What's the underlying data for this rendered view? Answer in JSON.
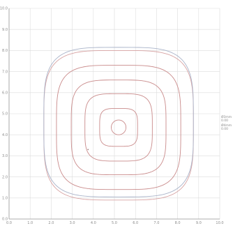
{
  "chart_data": {
    "type": "line",
    "title": "",
    "xlabel": "",
    "ylabel": "",
    "xlim": [
      0,
      10
    ],
    "ylim": [
      0,
      10
    ],
    "grid": true,
    "legend_placement": "right",
    "x_ticks": [
      "0.0",
      "1.0",
      "2.0",
      "3.0",
      "4.0",
      "5.0",
      "6.0",
      "7.0",
      "8.0",
      "9.0",
      "10.0"
    ],
    "y_ticks": [
      "0.0",
      "1.0",
      "2.0",
      "3.0",
      "4.0",
      "5.0",
      "6.0",
      "7.0",
      "8.0",
      "9.0",
      "10.0"
    ],
    "legend": [
      {
        "label": "Ø3mm",
        "value": "0.00"
      },
      {
        "label": "Ø4mm",
        "value": "0.00"
      }
    ],
    "series": [
      {
        "center": [
          5.2,
          4.35
        ],
        "radius": 0.35,
        "color": "#c98a8a"
      },
      {
        "center": [
          5.2,
          4.35
        ],
        "radius": 0.9,
        "color": "#c98a8a"
      },
      {
        "center": [
          5.2,
          4.35
        ],
        "radius": 1.6,
        "color": "#c98a8a"
      },
      {
        "center": [
          5.2,
          4.35
        ],
        "radius": 2.25,
        "color": "#c98a8a"
      },
      {
        "center": [
          5.2,
          4.35
        ],
        "radius": 2.95,
        "color": "#c98a8a"
      },
      {
        "center": [
          5.2,
          4.45
        ],
        "radius": 3.55,
        "color": "#d7a2a2"
      },
      {
        "center": [
          5.2,
          4.6
        ],
        "radius": 3.55,
        "color": "#a9b3c9"
      }
    ],
    "annotations": [
      {
        "x": 3.75,
        "y": 3.3,
        "label": ""
      }
    ]
  }
}
